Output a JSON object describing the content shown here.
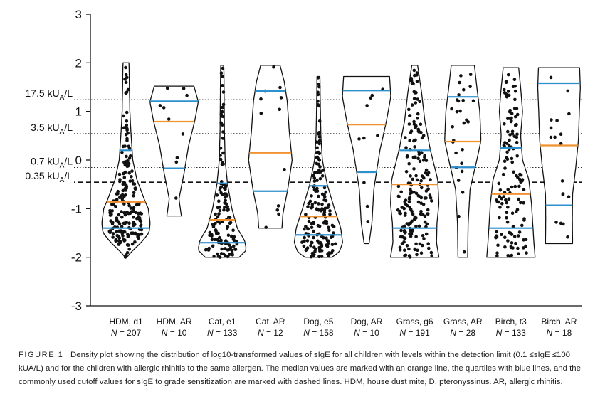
{
  "chart_data": {
    "type": "violin",
    "ylim": [
      -3,
      3
    ],
    "yticks": [
      "3",
      "2",
      "1",
      "0",
      "-1",
      "-2",
      "-3"
    ],
    "ytick_values": [
      3,
      2,
      1,
      0,
      -1,
      -2,
      -3
    ],
    "cutoffs": [
      {
        "label_main": "17.5 kU",
        "label_sub": "A",
        "label_end": "/L",
        "value": 1.243,
        "style": "dotted"
      },
      {
        "label_main": "3.5 kU",
        "label_sub": "A",
        "label_end": "/L",
        "value": 0.544,
        "style": "dotted"
      },
      {
        "label_main": "0.7 kU",
        "label_sub": "A",
        "label_end": "/L",
        "value": -0.155,
        "style": "dotted"
      },
      {
        "label_main": "0.35 kU",
        "label_sub": "A",
        "label_end": "/L",
        "value": -0.456,
        "style": "dashed"
      }
    ],
    "groups": [
      {
        "name": "HDM, d1",
        "n_prefix": "N",
        "n_value": "= 207",
        "min": -2.0,
        "max": 2.0,
        "median": -0.86,
        "q1": -1.4,
        "q3": 0.2,
        "count": 207,
        "width": [
          [
            -2.0,
            0.04
          ],
          [
            -1.9,
            0.2
          ],
          [
            -1.7,
            0.62
          ],
          [
            -1.5,
            0.95
          ],
          [
            -1.3,
            1.0
          ],
          [
            -1.0,
            0.92
          ],
          [
            -0.8,
            0.75
          ],
          [
            -0.4,
            0.45
          ],
          [
            0.0,
            0.28
          ],
          [
            0.6,
            0.2
          ],
          [
            1.0,
            0.16
          ],
          [
            1.5,
            0.14
          ],
          [
            1.9,
            0.13
          ],
          [
            2.0,
            0.12
          ]
        ]
      },
      {
        "name": "HDM, AR",
        "n_prefix": "N",
        "n_value": "= 10",
        "min": -1.15,
        "max": 1.52,
        "median": 0.79,
        "q1": -0.17,
        "q3": 1.21,
        "count": 10,
        "width": [
          [
            -1.15,
            0.3
          ],
          [
            -0.8,
            0.2
          ],
          [
            -0.3,
            0.4
          ],
          [
            0.3,
            0.6
          ],
          [
            0.8,
            0.85
          ],
          [
            1.2,
            1.0
          ],
          [
            1.52,
            0.82
          ]
        ]
      },
      {
        "name": "Cat, e1",
        "n_prefix": "N",
        "n_value": "= 133",
        "min": -2.0,
        "max": 1.95,
        "median": -1.23,
        "q1": -1.7,
        "q3": -0.48,
        "count": 133,
        "width": [
          [
            -2.0,
            0.7
          ],
          [
            -1.85,
            1.0
          ],
          [
            -1.65,
            0.92
          ],
          [
            -1.4,
            0.62
          ],
          [
            -1.0,
            0.4
          ],
          [
            -0.5,
            0.22
          ],
          [
            0.0,
            0.12
          ],
          [
            0.6,
            0.09
          ],
          [
            1.2,
            0.08
          ],
          [
            1.8,
            0.07
          ],
          [
            1.95,
            0.06
          ]
        ]
      },
      {
        "name": "Cat, AR",
        "n_prefix": "N",
        "n_value": "= 12",
        "min": -1.4,
        "max": 1.95,
        "median": 0.15,
        "q1": -0.64,
        "q3": 1.42,
        "count": 12,
        "width": [
          [
            -1.4,
            0.48
          ],
          [
            -1.1,
            0.52
          ],
          [
            -0.6,
            0.72
          ],
          [
            0.0,
            0.9
          ],
          [
            0.6,
            0.78
          ],
          [
            1.2,
            0.7
          ],
          [
            1.6,
            0.58
          ],
          [
            1.95,
            0.4
          ]
        ]
      },
      {
        "name": "Dog, e5",
        "n_prefix": "N",
        "n_value": "= 158",
        "min": -2.0,
        "max": 1.72,
        "median": -1.16,
        "q1": -1.54,
        "q3": -0.53,
        "count": 158,
        "width": [
          [
            -2.0,
            0.55
          ],
          [
            -1.9,
            0.85
          ],
          [
            -1.7,
            1.0
          ],
          [
            -1.4,
            0.92
          ],
          [
            -1.0,
            0.66
          ],
          [
            -0.5,
            0.36
          ],
          [
            0.0,
            0.16
          ],
          [
            0.5,
            0.1
          ],
          [
            1.0,
            0.08
          ],
          [
            1.72,
            0.06
          ]
        ]
      },
      {
        "name": "Dog, AR",
        "n_prefix": "N",
        "n_value": "= 10",
        "min": -1.72,
        "max": 1.72,
        "median": 0.73,
        "q1": -0.25,
        "q3": 1.43,
        "count": 10,
        "width": [
          [
            -1.72,
            0.1
          ],
          [
            -1.3,
            0.22
          ],
          [
            -0.6,
            0.3
          ],
          [
            0.2,
            0.55
          ],
          [
            0.8,
            0.82
          ],
          [
            1.3,
            1.0
          ],
          [
            1.72,
            0.95
          ]
        ]
      },
      {
        "name": "Grass, g6",
        "n_prefix": "N",
        "n_value": "= 191",
        "min": -2.0,
        "max": 1.95,
        "median": -0.5,
        "q1": -1.4,
        "q3": 0.2,
        "count": 191,
        "width": [
          [
            -2.0,
            1.0
          ],
          [
            -1.7,
            0.9
          ],
          [
            -1.3,
            0.92
          ],
          [
            -0.9,
            1.0
          ],
          [
            -0.4,
            0.95
          ],
          [
            0.2,
            0.65
          ],
          [
            0.8,
            0.42
          ],
          [
            1.4,
            0.28
          ],
          [
            1.95,
            0.12
          ]
        ]
      },
      {
        "name": "Grass, AR",
        "n_prefix": "N",
        "n_value": "= 28",
        "min": -2.0,
        "max": 1.95,
        "median": 0.38,
        "q1": -0.15,
        "q3": 1.3,
        "count": 28,
        "width": [
          [
            -2.0,
            0.2
          ],
          [
            -1.3,
            0.22
          ],
          [
            -0.6,
            0.3
          ],
          [
            0.0,
            0.58
          ],
          [
            0.4,
            0.75
          ],
          [
            1.0,
            0.7
          ],
          [
            1.5,
            0.58
          ],
          [
            1.95,
            0.48
          ]
        ]
      },
      {
        "name": "Birch, t3",
        "n_prefix": "N",
        "n_value": "= 133",
        "min": -2.0,
        "max": 1.9,
        "median": -0.7,
        "q1": -1.4,
        "q3": 0.25,
        "count": 133,
        "width": [
          [
            -2.0,
            1.0
          ],
          [
            -1.7,
            0.95
          ],
          [
            -1.3,
            0.9
          ],
          [
            -0.9,
            0.85
          ],
          [
            -0.4,
            0.74
          ],
          [
            0.0,
            0.48
          ],
          [
            0.5,
            0.4
          ],
          [
            1.0,
            0.48
          ],
          [
            1.5,
            0.4
          ],
          [
            1.9,
            0.32
          ]
        ]
      },
      {
        "name": "Birch, AR",
        "n_prefix": "N",
        "n_value": "= 18",
        "min": -1.72,
        "max": 1.9,
        "median": 0.3,
        "q1": -0.93,
        "q3": 1.58,
        "count": 18,
        "width": [
          [
            -1.72,
            0.56
          ],
          [
            -1.2,
            0.55
          ],
          [
            -0.7,
            0.56
          ],
          [
            -0.2,
            0.68
          ],
          [
            0.4,
            0.8
          ],
          [
            1.0,
            0.84
          ],
          [
            1.5,
            0.88
          ],
          [
            1.9,
            0.85
          ]
        ]
      }
    ],
    "colors": {
      "median": "#f0922f",
      "quartile": "#2d8fcc",
      "outline": "#111111",
      "dot": "#111111"
    }
  },
  "caption": {
    "label": "FIGURE 1",
    "text": "Density plot showing the distribution of log10-transformed values of sIgE for all children with levels within the detection limit (0.1 ≤sIgE ≤100 kUA/L) and for the children with allergic rhinitis to the same allergen. The median values are marked with an orange line, the quartiles with blue lines, and the commonly used cutoff values for sIgE to grade sensitization are marked with dashed lines. HDM, house dust mite, D. pteronyssinus. AR, allergic rhinitis."
  }
}
